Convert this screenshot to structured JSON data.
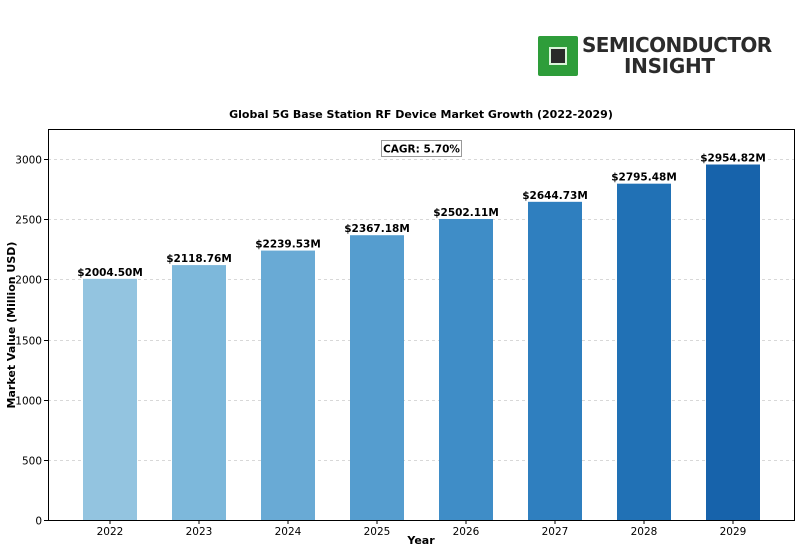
{
  "logo": {
    "line1": "SEMICONDUCTOR",
    "line2": "INSIGHT",
    "icon": "chip-icon",
    "accent": "#2e9d3a"
  },
  "chart_data": {
    "type": "bar",
    "title": "Global 5G Base Station RF Device Market Growth (2022-2029)",
    "xlabel": "Year",
    "ylabel": "Market Value (Million USD)",
    "categories": [
      "2022",
      "2023",
      "2024",
      "2025",
      "2026",
      "2027",
      "2028",
      "2029"
    ],
    "values": [
      2004.5,
      2118.76,
      2239.53,
      2367.18,
      2502.11,
      2644.73,
      2795.48,
      2954.82
    ],
    "data_labels": [
      "$2004.50M",
      "$2118.76M",
      "$2239.53M",
      "$2367.18M",
      "$2502.11M",
      "$2644.73M",
      "$2795.48M",
      "$2954.82M"
    ],
    "colors": [
      "#93c4e0",
      "#7db8db",
      "#69aad5",
      "#559dcf",
      "#3f8dc7",
      "#2f7fbf",
      "#2171b5",
      "#1763ab"
    ],
    "ylim": [
      0,
      3250
    ],
    "yticks": [
      0,
      500,
      1000,
      1500,
      2000,
      2500,
      3000
    ],
    "grid": "y-dashed",
    "annotation": "CAGR: 5.70%",
    "legend": "none"
  }
}
